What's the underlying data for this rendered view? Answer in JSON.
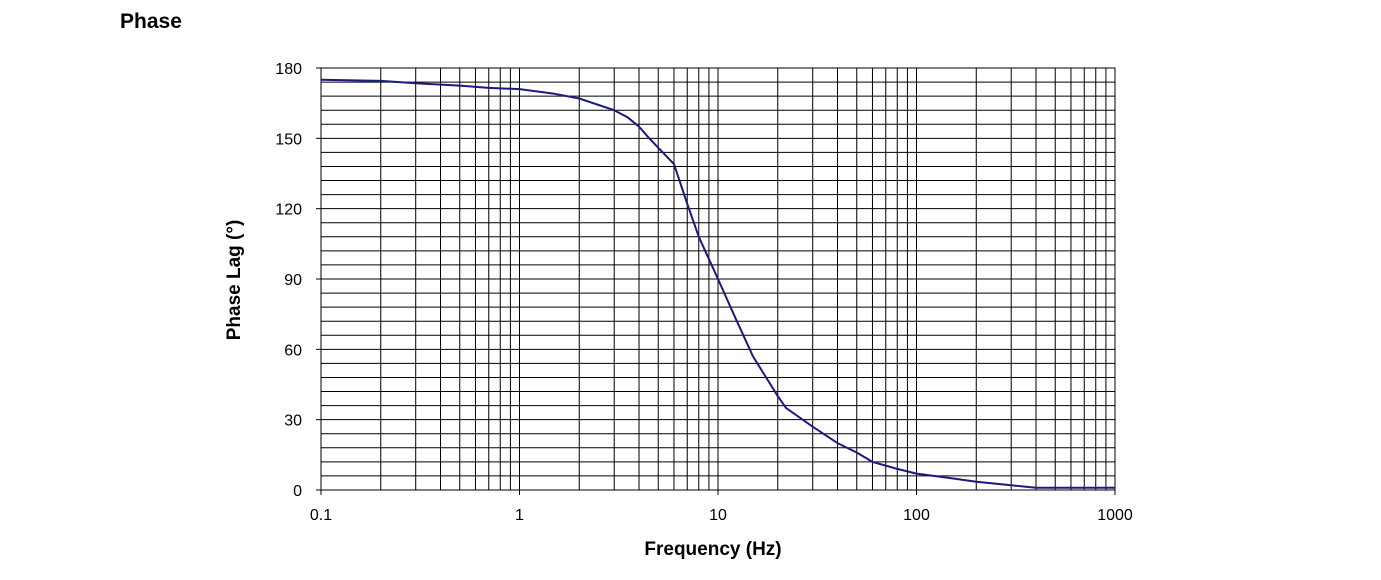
{
  "page_title": "Phase",
  "chart_data": {
    "type": "line",
    "title": "",
    "xlabel": "Frequency (Hz)",
    "ylabel": "Phase Lag (°)",
    "x_scale": "log",
    "xlim": [
      0.1,
      1000
    ],
    "ylim": [
      0,
      180
    ],
    "x_ticks": [
      0.1,
      1,
      10,
      100,
      1000
    ],
    "x_tick_labels": [
      "0.1",
      "1",
      "10",
      "100",
      "1000"
    ],
    "y_ticks": [
      0,
      30,
      60,
      90,
      120,
      150,
      180
    ],
    "y_tick_labels": [
      "0",
      "30",
      "60",
      "90",
      "120",
      "150",
      "180"
    ],
    "grid": true,
    "legend": "none",
    "series": [
      {
        "color": "#1a1a80",
        "x": [
          0.1,
          0.2,
          0.3,
          0.5,
          0.7,
          1,
          1.5,
          2,
          3,
          3.5,
          4,
          4.5,
          5,
          6,
          7,
          8,
          10,
          12,
          15,
          20,
          22,
          30,
          40,
          50,
          60,
          80,
          100,
          150,
          200,
          300,
          400,
          600,
          1000
        ],
        "y": [
          175,
          174.5,
          173.5,
          172.5,
          171.5,
          171,
          169,
          167,
          162,
          159,
          155,
          150,
          146,
          139,
          122,
          108,
          90,
          75,
          57,
          40,
          35,
          27,
          20,
          16,
          12,
          9,
          7,
          5,
          3.5,
          2,
          1,
          1,
          1
        ]
      }
    ]
  }
}
